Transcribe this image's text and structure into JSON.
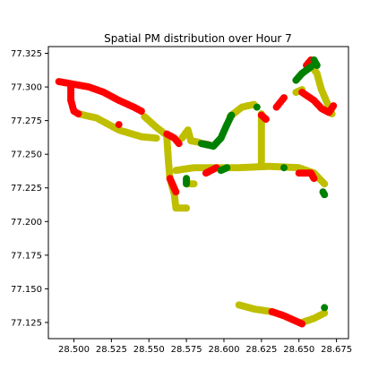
{
  "chart_data": {
    "type": "scatter",
    "title": "Spatial PM distribution over Hour 7",
    "xlabel": "",
    "ylabel": "",
    "xlim": [
      28.483,
      28.683
    ],
    "ylim": [
      77.113,
      77.33
    ],
    "xticks": [
      28.5,
      28.525,
      28.55,
      28.575,
      28.6,
      28.625,
      28.65,
      28.675
    ],
    "xtick_labels": [
      "28.500",
      "28.525",
      "28.550",
      "28.575",
      "28.600",
      "28.625",
      "28.650",
      "28.675"
    ],
    "yticks": [
      77.125,
      77.15,
      77.175,
      77.2,
      77.225,
      77.25,
      77.275,
      77.3,
      77.325
    ],
    "ytick_labels": [
      "77.125",
      "77.150",
      "77.175",
      "77.200",
      "77.225",
      "77.250",
      "77.275",
      "77.300",
      "77.325"
    ],
    "grid": false,
    "legend": "none",
    "colors": {
      "red": "#ff0000",
      "yellow": "#bfbf00",
      "green": "#008000"
    },
    "series": [
      {
        "color": "yellow",
        "paths": [
          [
            [
              28.503,
              77.28
            ],
            [
              28.515,
              77.277
            ],
            [
              28.53,
              77.268
            ],
            [
              28.545,
              77.263
            ],
            [
              28.555,
              77.262
            ]
          ],
          [
            [
              28.547,
              77.278
            ],
            [
              28.555,
              77.27
            ],
            [
              28.562,
              77.264
            ]
          ],
          [
            [
              28.562,
              77.262
            ],
            [
              28.563,
              77.245
            ],
            [
              28.564,
              77.232
            ],
            [
              28.567,
              77.22
            ],
            [
              28.568,
              77.21
            ],
            [
              28.575,
              77.21
            ]
          ],
          [
            [
              28.568,
              77.238
            ],
            [
              28.58,
              77.24
            ],
            [
              28.595,
              77.24
            ],
            [
              28.61,
              77.24
            ],
            [
              28.63,
              77.241
            ],
            [
              28.65,
              77.24
            ],
            [
              28.66,
              77.236
            ],
            [
              28.667,
              77.228
            ]
          ],
          [
            [
              28.575,
              77.228
            ],
            [
              28.58,
              77.228
            ]
          ],
          [
            [
              28.572,
              77.262
            ],
            [
              28.576,
              77.268
            ],
            [
              28.578,
              77.26
            ],
            [
              28.583,
              77.259
            ]
          ],
          [
            [
              28.604,
              77.278
            ],
            [
              28.612,
              77.285
            ],
            [
              28.62,
              77.287
            ]
          ],
          [
            [
              28.625,
              77.28
            ],
            [
              28.625,
              77.26
            ],
            [
              28.625,
              77.241
            ]
          ],
          [
            [
              28.658,
              77.316
            ],
            [
              28.662,
              77.31
            ],
            [
              28.665,
              77.298
            ],
            [
              28.67,
              77.285
            ],
            [
              28.672,
              77.28
            ]
          ],
          [
            [
              28.648,
              77.296
            ],
            [
              28.652,
              77.298
            ]
          ],
          [
            [
              28.61,
              77.138
            ],
            [
              28.62,
              77.135
            ],
            [
              28.632,
              77.133
            ]
          ],
          [
            [
              28.652,
              77.125
            ],
            [
              28.66,
              77.128
            ],
            [
              28.667,
              77.132
            ]
          ]
        ]
      },
      {
        "color": "red",
        "paths": [
          [
            [
              28.49,
              77.304
            ],
            [
              28.5,
              77.302
            ],
            [
              28.51,
              77.3
            ],
            [
              28.52,
              77.296
            ],
            [
              28.53,
              77.29
            ],
            [
              28.54,
              77.285
            ],
            [
              28.545,
              77.282
            ]
          ],
          [
            [
              28.498,
              77.302
            ],
            [
              28.498,
              77.29
            ],
            [
              28.5,
              77.282
            ],
            [
              28.503,
              77.28
            ]
          ],
          [
            [
              28.53,
              77.272
            ]
          ],
          [
            [
              28.562,
              77.265
            ],
            [
              28.567,
              77.262
            ],
            [
              28.57,
              77.258
            ]
          ],
          [
            [
              28.564,
              77.232
            ],
            [
              28.568,
              77.222
            ]
          ],
          [
            [
              28.585,
              77.258
            ],
            [
              28.59,
              77.257
            ]
          ],
          [
            [
              28.588,
              77.236
            ],
            [
              28.595,
              77.24
            ]
          ],
          [
            [
              28.625,
              77.279
            ],
            [
              28.628,
              77.276
            ]
          ],
          [
            [
              28.635,
              77.285
            ],
            [
              28.64,
              77.292
            ]
          ],
          [
            [
              28.652,
              77.296
            ],
            [
              28.66,
              77.29
            ],
            [
              28.665,
              77.284
            ],
            [
              28.67,
              77.281
            ],
            [
              28.673,
              77.286
            ]
          ],
          [
            [
              28.65,
              77.236
            ],
            [
              28.658,
              77.236
            ],
            [
              28.66,
              77.232
            ]
          ],
          [
            [
              28.655,
              77.316
            ],
            [
              28.658,
              77.32
            ]
          ],
          [
            [
              28.632,
              77.133
            ],
            [
              28.64,
              77.13
            ],
            [
              28.648,
              77.126
            ],
            [
              28.652,
              77.124
            ]
          ]
        ]
      },
      {
        "color": "green",
        "paths": [
          [
            [
              28.585,
              77.258
            ],
            [
              28.593,
              77.256
            ],
            [
              28.598,
              77.262
            ],
            [
              28.602,
              77.272
            ],
            [
              28.605,
              77.279
            ]
          ],
          [
            [
              28.622,
              77.285
            ]
          ],
          [
            [
              28.598,
              77.238
            ],
            [
              28.602,
              77.24
            ]
          ],
          [
            [
              28.64,
              77.24
            ]
          ],
          [
            [
              28.66,
              77.32
            ],
            [
              28.662,
              77.316
            ]
          ],
          [
            [
              28.648,
              77.305
            ],
            [
              28.652,
              77.31
            ],
            [
              28.658,
              77.315
            ]
          ],
          [
            [
              28.575,
              77.232
            ],
            [
              28.575,
              77.228
            ]
          ],
          [
            [
              28.666,
              77.222
            ],
            [
              28.667,
              77.22
            ]
          ],
          [
            [
              28.667,
              77.136
            ]
          ]
        ]
      }
    ]
  }
}
